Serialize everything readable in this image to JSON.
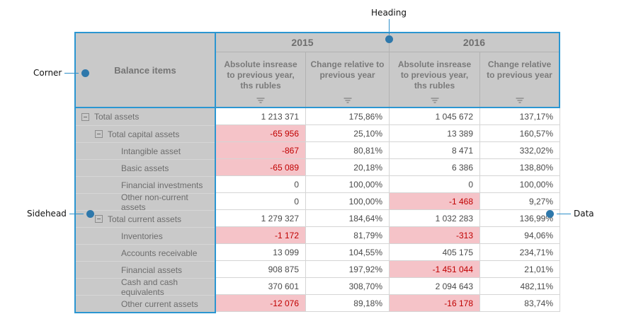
{
  "annotations": {
    "heading": "Heading",
    "corner": "Corner",
    "sidehead": "Sidehead",
    "data": "Data"
  },
  "pivot": {
    "corner_label": "Balance items",
    "groups": [
      {
        "year": "2015",
        "sub_columns": [
          "Absolute insrease to previous year, ths rubles",
          "Change relative to previous year"
        ]
      },
      {
        "year": "2016",
        "sub_columns": [
          "Absolute insrease to previous year, ths rubles",
          "Change relative to previous year"
        ]
      }
    ],
    "rows": [
      {
        "label": "Total assets",
        "level": 0,
        "collapsible": true,
        "values": [
          "1 213 371",
          "175,86%",
          "1 045 672",
          "137,17%"
        ]
      },
      {
        "label": "Total capital assets",
        "level": 1,
        "collapsible": true,
        "values": [
          "-65 956",
          "25,10%",
          "13 389",
          "160,57%"
        ]
      },
      {
        "label": "Intangible asset",
        "level": 2,
        "collapsible": false,
        "values": [
          "-867",
          "80,81%",
          "8 471",
          "332,02%"
        ]
      },
      {
        "label": "Basic assets",
        "level": 2,
        "collapsible": false,
        "values": [
          "-65 089",
          "20,18%",
          "6 386",
          "138,80%"
        ]
      },
      {
        "label": "Financial investments",
        "level": 2,
        "collapsible": false,
        "values": [
          "0",
          "100,00%",
          "0",
          "100,00%"
        ]
      },
      {
        "label": "Other non-current assets",
        "level": 2,
        "collapsible": false,
        "values": [
          "0",
          "100,00%",
          "-1 468",
          "9,27%"
        ]
      },
      {
        "label": "Total current assets",
        "level": 1,
        "collapsible": true,
        "values": [
          "1 279 327",
          "184,64%",
          "1 032 283",
          "136,99%"
        ]
      },
      {
        "label": "Inventories",
        "level": 2,
        "collapsible": false,
        "values": [
          "-1 172",
          "81,79%",
          "-313",
          "94,06%"
        ]
      },
      {
        "label": "Accounts receivable",
        "level": 2,
        "collapsible": false,
        "values": [
          "13 099",
          "104,55%",
          "405 175",
          "234,71%"
        ]
      },
      {
        "label": "Financial assets",
        "level": 2,
        "collapsible": false,
        "values": [
          "908 875",
          "197,92%",
          "-1 451 044",
          "21,01%"
        ]
      },
      {
        "label": "Cash and cash equivalents",
        "level": 2,
        "collapsible": false,
        "values": [
          "370 601",
          "308,70%",
          "2 094 643",
          "482,11%"
        ]
      },
      {
        "label": "Other current assets",
        "level": 2,
        "collapsible": false,
        "values": [
          "-12 076",
          "89,18%",
          "-16 178",
          "83,74%"
        ]
      }
    ]
  },
  "colors": {
    "region_border": "#2b96d1",
    "callout_dot": "#2e78ab",
    "callout_line": "#2e8fc9",
    "header_bg": "#c9c9c9",
    "negative_bg": "#f5c3c8",
    "negative_text": "#c00000"
  },
  "icons": {
    "filter": "funnel-bars-filter-icon",
    "collapse": "minus-box-collapse-icon"
  }
}
